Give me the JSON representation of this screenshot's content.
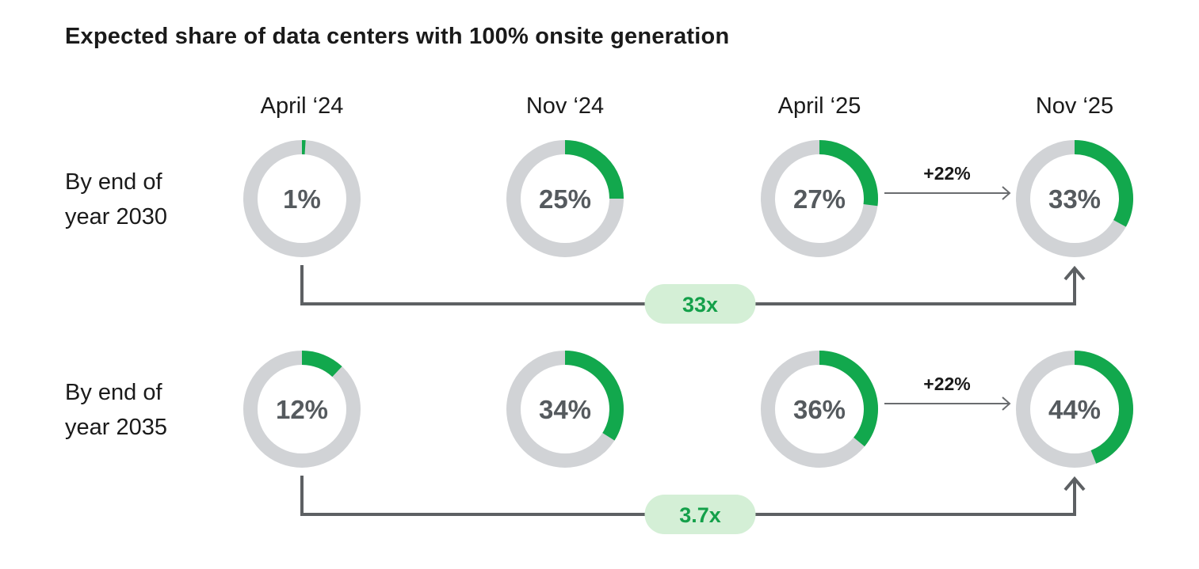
{
  "chart_data": {
    "type": "donut",
    "title": "Expected share of data centers with 100% onsite generation",
    "categories": [
      "April ‘24",
      "Nov ‘24",
      "April ‘25",
      "Nov ‘25"
    ],
    "series": [
      {
        "name": "By end of year 2030",
        "label_lines": [
          "By end of",
          "year 2030"
        ],
        "values": [
          1,
          25,
          27,
          33
        ],
        "value_labels": [
          "1%",
          "25%",
          "27%",
          "33%"
        ],
        "change_label": "+22%",
        "multiplier_label": "33x"
      },
      {
        "name": "By end of year 2035",
        "label_lines": [
          "By end of",
          "year 2035"
        ],
        "values": [
          12,
          34,
          36,
          44
        ],
        "value_labels": [
          "12%",
          "34%",
          "36%",
          "44%"
        ],
        "change_label": "+22%",
        "multiplier_label": "3.7x"
      }
    ],
    "colors": {
      "filled": "#12a84d",
      "track": "#d1d3d6",
      "connector": "#5d6063",
      "arrow": "#6a6c6f",
      "pill": "#d4efd6",
      "multiplier_text": "#14a04a",
      "value_text": "#555a5e"
    }
  }
}
